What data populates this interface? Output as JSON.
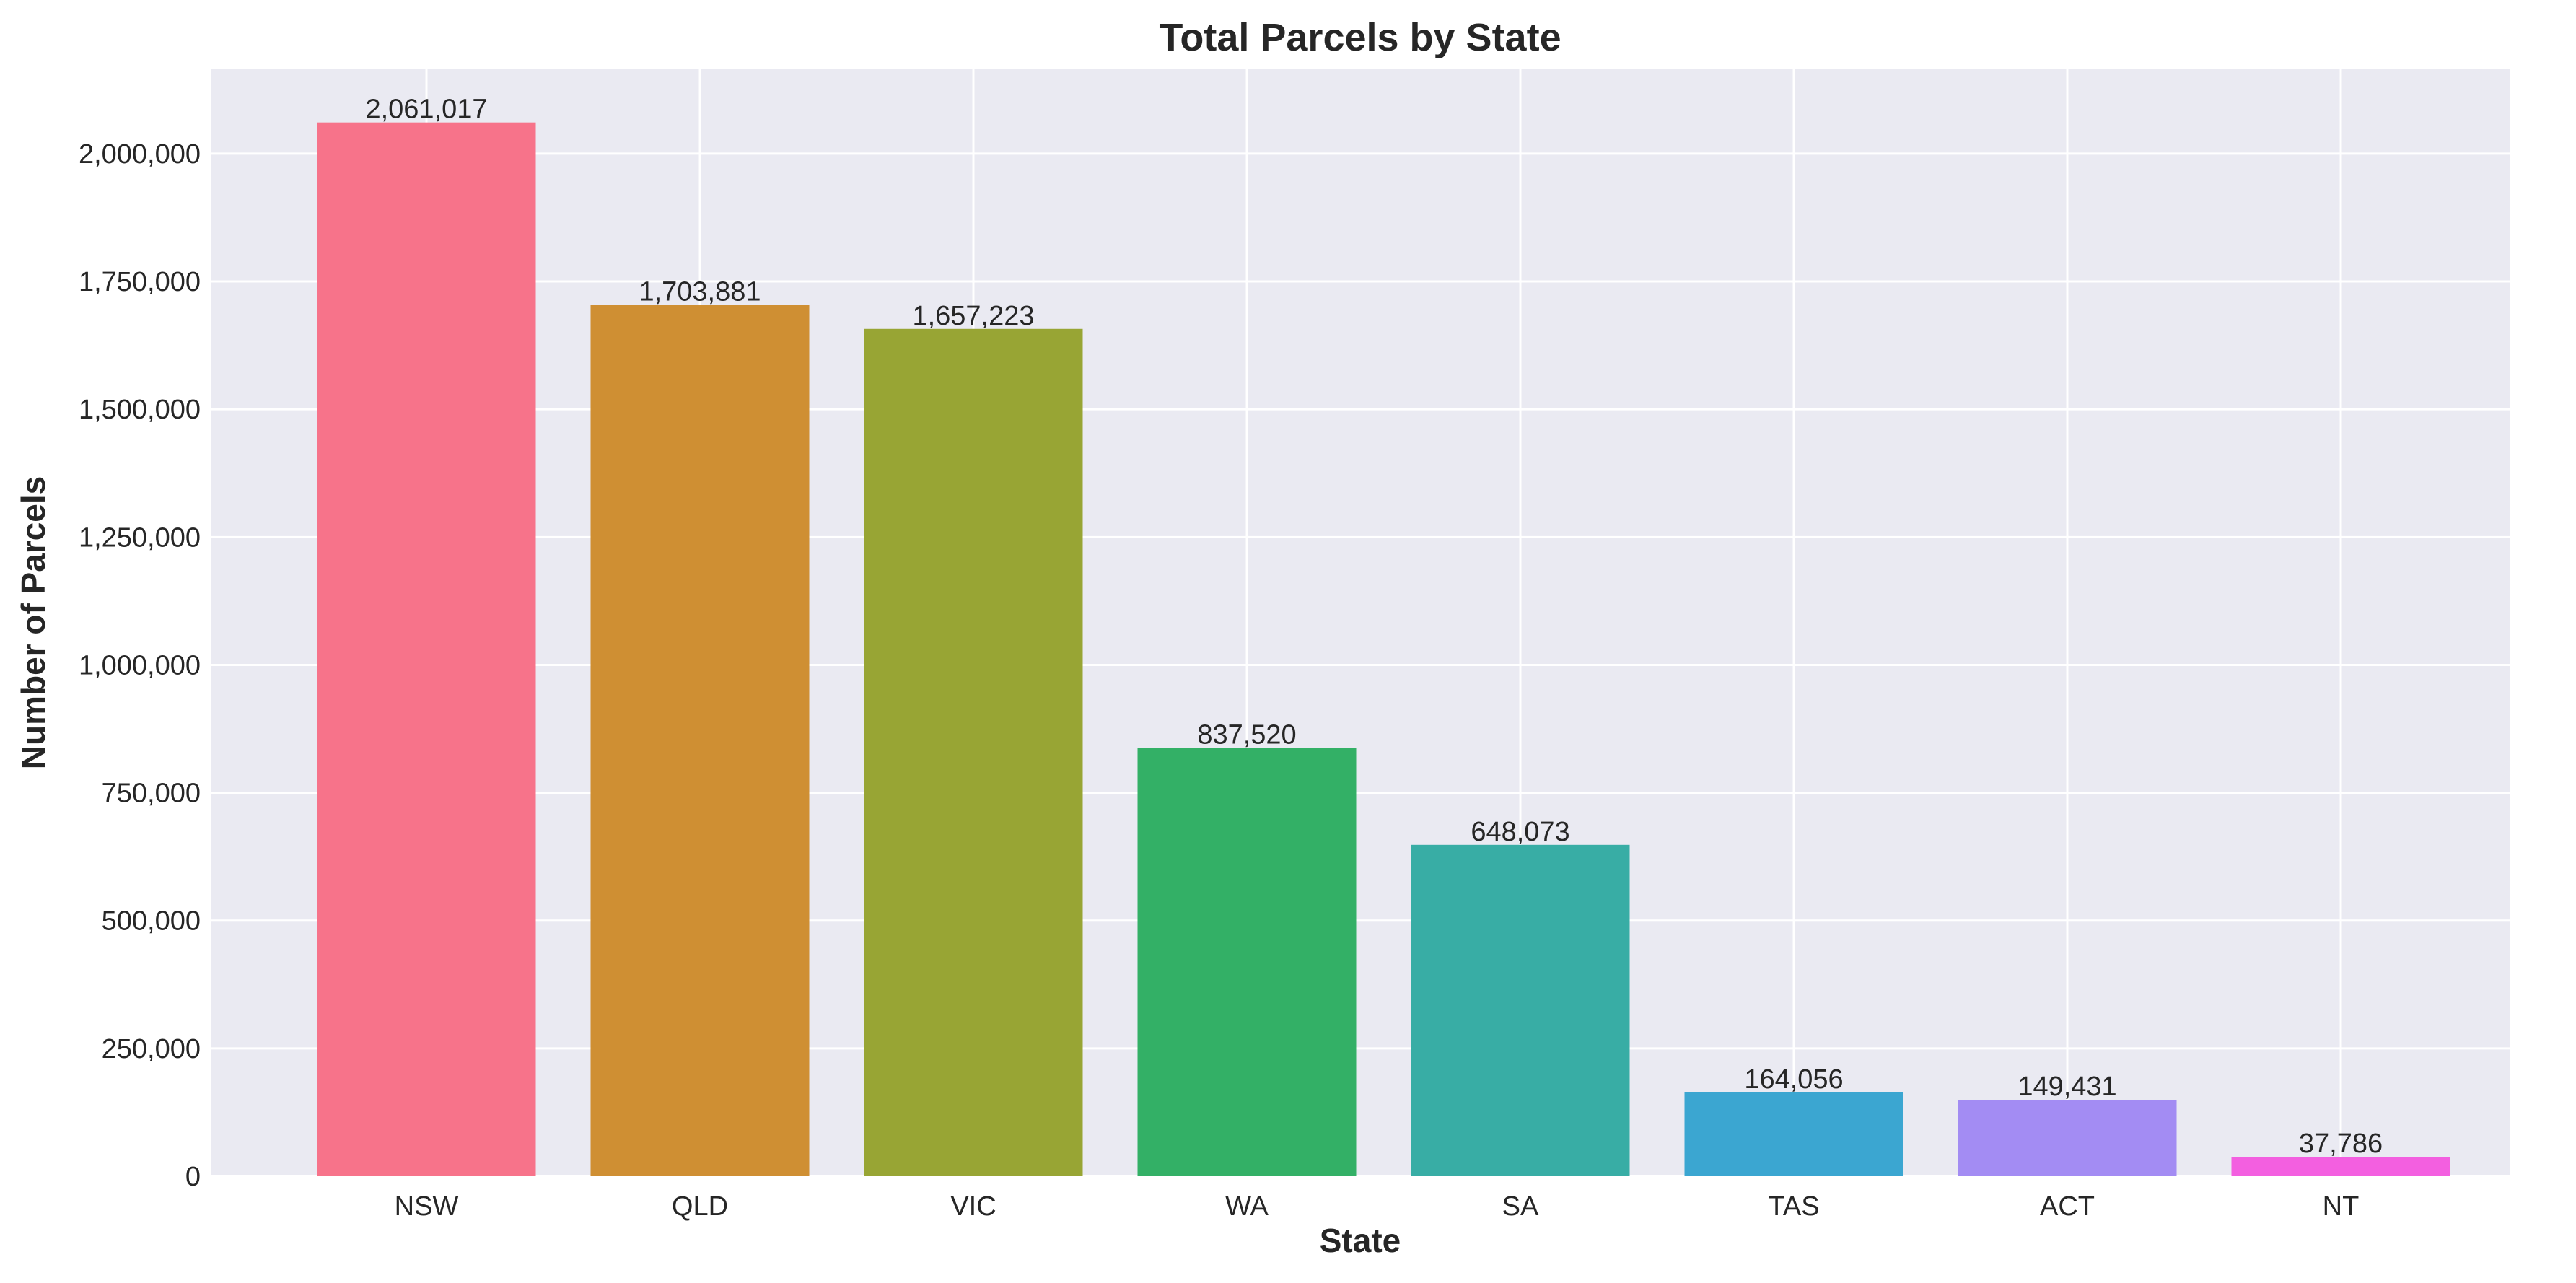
{
  "chart_data": {
    "type": "bar",
    "title": "Total Parcels by State",
    "xlabel": "State",
    "ylabel": "Number of Parcels",
    "categories": [
      "NSW",
      "QLD",
      "VIC",
      "WA",
      "SA",
      "TAS",
      "ACT",
      "NT"
    ],
    "values": [
      2061017,
      1703881,
      1657223,
      837520,
      648073,
      164056,
      149431,
      37786
    ],
    "value_labels": [
      "2,061,017",
      "1,703,881",
      "1,657,223",
      "837,520",
      "648,073",
      "164,056",
      "149,431",
      "37,786"
    ],
    "colors": [
      "#f7738a",
      "#cf8f33",
      "#98a534",
      "#33b066",
      "#38ada5",
      "#3ba6d1",
      "#a38cf3",
      "#f35fe0"
    ],
    "ylim": [
      0,
      2165000
    ],
    "yticks": [
      0,
      250000,
      500000,
      750000,
      1000000,
      1250000,
      1500000,
      1750000,
      2000000
    ],
    "ytick_labels": [
      "0",
      "250,000",
      "500,000",
      "750,000",
      "1,000,000",
      "1,250,000",
      "1,500,000",
      "1,750,000",
      "2,000,000"
    ],
    "grid": true,
    "background_color": "#eaeaf2",
    "grid_color": "#ffffff"
  }
}
